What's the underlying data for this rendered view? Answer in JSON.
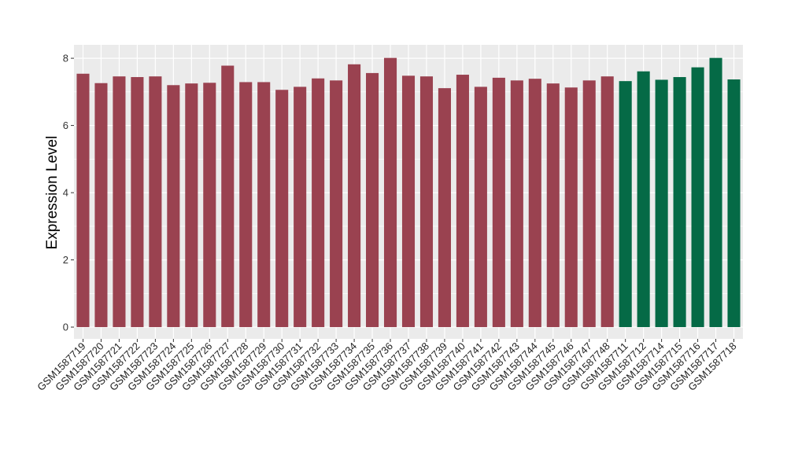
{
  "chart_data": {
    "type": "bar",
    "title": "",
    "xlabel": "",
    "ylabel": "Expression Level",
    "ylim": [
      -0.35,
      8.4
    ],
    "yticks": [
      0,
      2,
      4,
      6,
      8
    ],
    "grid": true,
    "legend": "none",
    "colors": {
      "group1": "#9a4250",
      "group2": "#056a46",
      "panel": "#ebebeb",
      "grid": "#ffffff"
    },
    "categories": [
      "GSM1587719",
      "GSM1587720",
      "GSM1587721",
      "GSM1587722",
      "GSM1587723",
      "GSM1587724",
      "GSM1587725",
      "GSM1587726",
      "GSM1587727",
      "GSM1587728",
      "GSM1587729",
      "GSM1587730",
      "GSM1587731",
      "GSM1587732",
      "GSM1587733",
      "GSM1587734",
      "GSM1587735",
      "GSM1587736",
      "GSM1587737",
      "GSM1587738",
      "GSM1587739",
      "GSM1587740",
      "GSM1587741",
      "GSM1587742",
      "GSM1587743",
      "GSM1587744",
      "GSM1587745",
      "GSM1587746",
      "GSM1587747",
      "GSM1587748",
      "GSM1587711",
      "GSM1587712",
      "GSM1587714",
      "GSM1587715",
      "GSM1587716",
      "GSM1587717",
      "GSM1587718"
    ],
    "values": [
      7.54,
      7.26,
      7.46,
      7.44,
      7.46,
      7.2,
      7.25,
      7.27,
      7.78,
      7.29,
      7.29,
      7.06,
      7.15,
      7.4,
      7.34,
      7.82,
      7.56,
      8.01,
      7.48,
      7.46,
      7.11,
      7.51,
      7.15,
      7.42,
      7.34,
      7.39,
      7.25,
      7.13,
      7.34,
      7.46,
      7.32,
      7.61,
      7.36,
      7.44,
      7.73,
      8.01,
      7.37
    ],
    "groups": [
      1,
      1,
      1,
      1,
      1,
      1,
      1,
      1,
      1,
      1,
      1,
      1,
      1,
      1,
      1,
      1,
      1,
      1,
      1,
      1,
      1,
      1,
      1,
      1,
      1,
      1,
      1,
      1,
      1,
      1,
      2,
      2,
      2,
      2,
      2,
      2,
      2
    ]
  }
}
